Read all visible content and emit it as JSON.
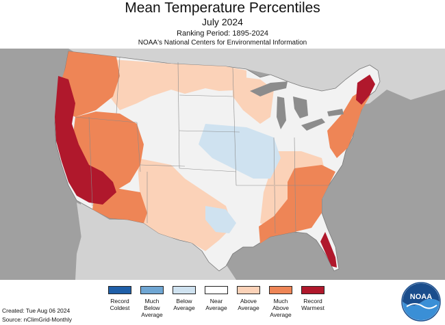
{
  "header": {
    "title": "Mean Temperature Percentiles",
    "subtitle": "July 2024",
    "ranking_period": "Ranking Period: 1895-2024",
    "source_org": "NOAA's National Centers for Environmental Information"
  },
  "legend": {
    "items": [
      {
        "label": "Record\nColdest",
        "color": "#1f5fa8"
      },
      {
        "label": "Much\nBelow\nAverage",
        "color": "#6fa6d3"
      },
      {
        "label": "Below\nAverage",
        "color": "#cfe2f0"
      },
      {
        "label": "Near\nAverage",
        "color": "#ffffff"
      },
      {
        "label": "Above\nAverage",
        "color": "#fbd2b8"
      },
      {
        "label": "Much\nAbove\nAverage",
        "color": "#ee8556"
      },
      {
        "label": "Record\nWarmest",
        "color": "#b0182c"
      }
    ]
  },
  "footer": {
    "created": "Created: Tue Aug 06 2024",
    "source": "Source: nClimGrid-Monthly"
  },
  "logo": {
    "text": "NOAA"
  },
  "colors": {
    "ocean": "#a0a0a0",
    "land_other": "#d2d2d2",
    "great_lakes": "#8c8c8c",
    "state_border": "#8a8a8a"
  }
}
